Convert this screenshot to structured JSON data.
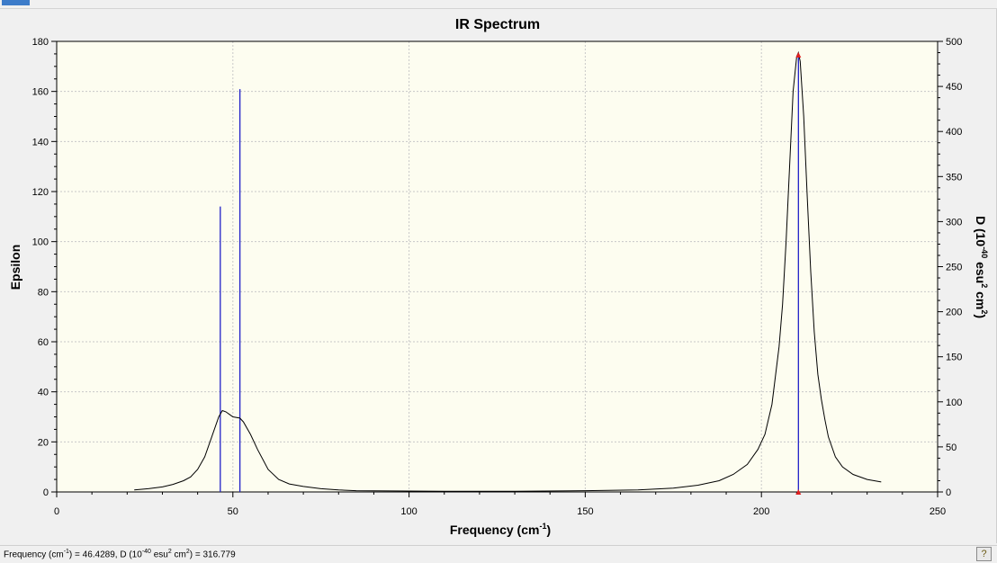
{
  "window": {
    "active_tab_color": "#3d7cc9"
  },
  "statusbar": {
    "freq_label": "Frequency (cm",
    "freq_exp": "-1",
    "freq_value": ") = 46.4289, D (10",
    "d_exp": "-40",
    "d_unit_a": " esu",
    "d_unit_sq": "2",
    "d_unit_b": " cm",
    "d_unit_sq2": "2",
    "d_value": ") = 316.779",
    "help_icon": "help-icon"
  },
  "chart_data": {
    "type": "line",
    "title": "IR Spectrum",
    "xlabel": "Frequency (cm",
    "xlabel_sup": "-1",
    "xlabel_end": ")",
    "ylabel": "Epsilon",
    "y2label_a": "D (10",
    "y2label_sup1": "-40",
    "y2label_b": " esu",
    "y2label_sup2": "2",
    "y2label_c": " cm",
    "y2label_sup3": "2",
    "y2label_d": ")",
    "xlim": [
      0,
      250
    ],
    "ylim": [
      0,
      180
    ],
    "y2lim": [
      0,
      500
    ],
    "xticks": [
      0,
      50,
      100,
      150,
      200,
      250
    ],
    "yticks": [
      0,
      20,
      40,
      60,
      80,
      100,
      120,
      140,
      160,
      180
    ],
    "y2ticks": [
      0,
      50,
      100,
      150,
      200,
      250,
      300,
      350,
      400,
      450,
      500
    ],
    "grid": true,
    "colors": {
      "curve": "#000000",
      "sticks": "#2020c8",
      "marker": "#e02020",
      "plot_bg": "#fdfdf0",
      "grid": "#c8c8c8"
    },
    "series": [
      {
        "type": "line",
        "x": [
          22,
          26,
          30,
          33,
          36,
          38,
          40,
          42,
          44,
          46,
          47,
          48,
          49,
          50,
          52,
          53,
          55,
          57,
          60,
          63,
          66,
          70,
          75,
          80,
          85,
          95,
          110,
          130,
          150,
          165,
          175,
          182,
          188,
          192,
          196,
          199,
          201,
          203,
          205,
          206,
          207,
          208,
          209,
          210,
          210.5,
          211,
          212,
          213,
          214,
          215,
          216,
          217,
          218,
          219,
          221,
          223,
          226,
          230,
          234
        ],
        "y": [
          0.8,
          1.3,
          2,
          3,
          4.5,
          6,
          9,
          14,
          22,
          30,
          32.5,
          32,
          31,
          30,
          29.5,
          28,
          23,
          17,
          9,
          5,
          3.2,
          2.2,
          1.3,
          0.8,
          0.5,
          0.4,
          0.3,
          0.3,
          0.5,
          0.8,
          1.5,
          2.7,
          4.5,
          7,
          11,
          17,
          23,
          35,
          58,
          75,
          100,
          130,
          160,
          174,
          175.5,
          172,
          150,
          118,
          88,
          64,
          47,
          37,
          29,
          22,
          14,
          10,
          7,
          5,
          4
        ]
      },
      {
        "type": "stick",
        "x": [
          46.4289,
          52,
          210.5
        ],
        "d": [
          316.779,
          447,
          485
        ]
      }
    ],
    "markers": [
      {
        "x": 210.5,
        "y2": 485
      },
      {
        "x": 210.5,
        "y2": 0
      }
    ]
  }
}
